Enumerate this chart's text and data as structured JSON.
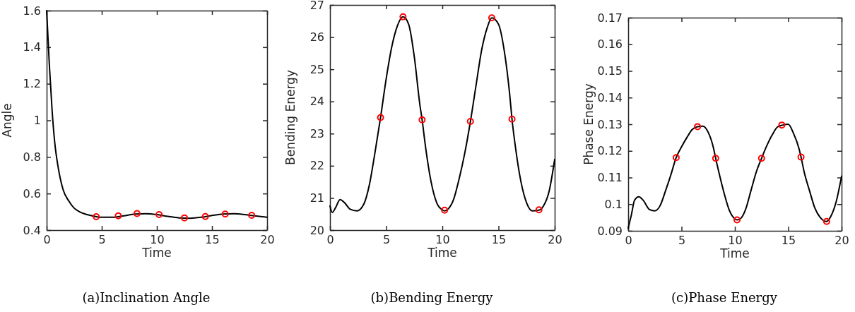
{
  "chart_data": [
    {
      "type": "line",
      "title": "(a)Inclination Angle",
      "xlabel": "Time",
      "ylabel": "Angle",
      "xlim": [
        0,
        20
      ],
      "xticks": [
        0,
        5,
        10,
        15,
        20
      ],
      "ylim": [
        0.4,
        1.6
      ],
      "yticks": [
        {
          "value": 0.4,
          "label": "0.4"
        },
        {
          "value": 0.6,
          "label": "0.6"
        },
        {
          "value": 0.8,
          "label": "0.8"
        },
        {
          "value": 1,
          "label": "1"
        },
        {
          "value": 1.2,
          "label": "1.2"
        },
        {
          "value": 1.4,
          "label": "1.4"
        },
        {
          "value": 1.6,
          "label": "1.6"
        }
      ],
      "series": [
        {
          "color": "#000000",
          "marker": "none",
          "x": [
            0,
            0.25,
            0.5,
            0.75,
            1,
            1.5,
            2,
            2.5,
            3,
            4,
            5,
            6,
            7,
            8,
            9,
            10,
            11,
            12,
            13,
            14,
            15,
            16,
            17,
            18,
            19,
            20
          ],
          "values": [
            1.6,
            1.3,
            1.05,
            0.87,
            0.76,
            0.62,
            0.56,
            0.52,
            0.5,
            0.48,
            0.47,
            0.47,
            0.478,
            0.488,
            0.49,
            0.485,
            0.475,
            0.467,
            0.465,
            0.47,
            0.48,
            0.488,
            0.49,
            0.485,
            0.477,
            0.47
          ]
        },
        {
          "type": "scatter",
          "color": "#ff0000",
          "marker": "circle",
          "x": [
            4.5,
            6.5,
            8.2,
            10.2,
            12.5,
            14.4,
            16.2,
            18.6
          ],
          "values": [
            0.473,
            0.478,
            0.491,
            0.485,
            0.467,
            0.474,
            0.488,
            0.481
          ]
        }
      ]
    },
    {
      "type": "line",
      "title": "(b)Bending Energy",
      "xlabel": "Time",
      "ylabel": "Bending Energy",
      "xlim": [
        0,
        20
      ],
      "xticks": [
        0,
        5,
        10,
        15,
        20
      ],
      "ylim": [
        20,
        27
      ],
      "yticks": [
        20,
        21,
        22,
        23,
        24,
        25,
        26,
        27
      ],
      "series": [
        {
          "color": "#000000",
          "marker": "none",
          "x": [
            0,
            0.2,
            0.5,
            0.9,
            1.3,
            1.8,
            2.4,
            3,
            3.5,
            4,
            4.5,
            5,
            5.5,
            6,
            6.5,
            7,
            7.5,
            8,
            8.2,
            8.5,
            9,
            9.5,
            10,
            10.2,
            10.5,
            11,
            11.5,
            12,
            12.5,
            13,
            13.5,
            14,
            14.4,
            15,
            15.5,
            16,
            16.2,
            16.5,
            17,
            17.5,
            18,
            18.6,
            19,
            19.5,
            20
          ],
          "values": [
            20.75,
            20.55,
            20.7,
            20.95,
            20.85,
            20.65,
            20.6,
            20.8,
            21.4,
            22.4,
            23.5,
            24.7,
            25.7,
            26.35,
            26.63,
            26.4,
            25.4,
            23.9,
            23.43,
            22.6,
            21.5,
            20.85,
            20.63,
            20.6,
            20.65,
            20.95,
            21.6,
            22.4,
            23.38,
            24.5,
            25.6,
            26.3,
            26.6,
            26.4,
            25.6,
            24.2,
            23.45,
            22.6,
            21.5,
            20.85,
            20.6,
            20.62,
            20.75,
            21.2,
            22.2
          ]
        },
        {
          "type": "scatter",
          "color": "#ff0000",
          "marker": "circle",
          "x": [
            4.5,
            6.5,
            8.2,
            10.2,
            12.5,
            14.4,
            16.2,
            18.6
          ],
          "values": [
            23.5,
            26.63,
            23.43,
            20.62,
            23.38,
            26.6,
            23.45,
            20.63
          ]
        }
      ]
    },
    {
      "type": "line",
      "title": "(c)Phase Energy",
      "xlabel": "Time",
      "ylabel": "Phase Energy",
      "xlim": [
        0,
        20
      ],
      "xticks": [
        0,
        5,
        10,
        15,
        20
      ],
      "ylim": [
        0.09,
        0.17
      ],
      "yticks": [
        {
          "value": 0.09,
          "label": "0.09"
        },
        {
          "value": 0.1,
          "label": "0.1"
        },
        {
          "value": 0.11,
          "label": "0.11"
        },
        {
          "value": 0.12,
          "label": "0.12"
        },
        {
          "value": 0.13,
          "label": "0.13"
        },
        {
          "value": 0.14,
          "label": "0.14"
        },
        {
          "value": 0.15,
          "label": "0.15"
        },
        {
          "value": 0.16,
          "label": "0.16"
        },
        {
          "value": 0.17,
          "label": "0.17"
        }
      ],
      "series": [
        {
          "color": "#000000",
          "marker": "none",
          "x": [
            0,
            0.3,
            0.6,
            1,
            1.4,
            2,
            2.5,
            3,
            3.5,
            4,
            4.5,
            5,
            5.5,
            6,
            6.5,
            7,
            7.5,
            8,
            8.2,
            8.5,
            9,
            9.5,
            10,
            10.2,
            10.5,
            11,
            11.5,
            12,
            12.5,
            13,
            13.5,
            14,
            14.5,
            15,
            15.5,
            16,
            16.2,
            16.5,
            17,
            17.5,
            18,
            18.6,
            19,
            19.5,
            20
          ],
          "values": [
            0.091,
            0.096,
            0.1015,
            0.1028,
            0.1015,
            0.098,
            0.0975,
            0.0995,
            0.105,
            0.111,
            0.1175,
            0.1215,
            0.125,
            0.128,
            0.1291,
            0.1293,
            0.127,
            0.121,
            0.1172,
            0.112,
            0.104,
            0.0975,
            0.0945,
            0.0941,
            0.0945,
            0.098,
            0.105,
            0.112,
            0.1172,
            0.122,
            0.126,
            0.129,
            0.1297,
            0.13,
            0.1265,
            0.121,
            0.1177,
            0.112,
            0.105,
            0.0985,
            0.095,
            0.0935,
            0.0955,
            0.101,
            0.1105
          ]
        },
        {
          "type": "scatter",
          "color": "#ff0000",
          "marker": "circle",
          "x": [
            4.5,
            6.5,
            8.2,
            10.2,
            12.5,
            14.4,
            16.2,
            18.6
          ],
          "values": [
            0.1175,
            0.1291,
            0.1172,
            0.0941,
            0.1172,
            0.1297,
            0.1177,
            0.0935
          ]
        }
      ]
    }
  ]
}
